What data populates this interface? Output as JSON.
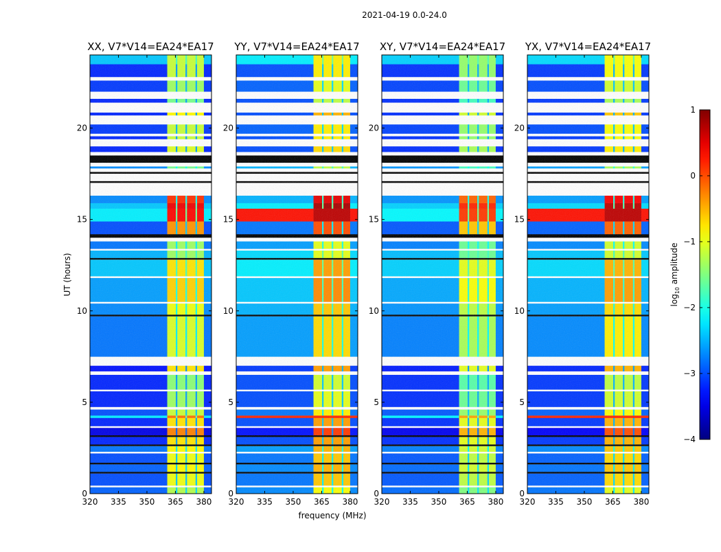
{
  "chart_data": {
    "type": "heatmap",
    "suptitle": "2021-04-19 0.0-24.0",
    "xlabel": "frequency (MHz)",
    "ylabel": "UT (hours)",
    "xlim": [
      320,
      384
    ],
    "ylim": [
      0,
      24
    ],
    "xticks": [
      "320",
      "335",
      "350",
      "365",
      "380"
    ],
    "xtick_values": [
      320,
      335,
      350,
      365,
      380
    ],
    "yticks": [
      "0",
      "5",
      "10",
      "15",
      "20"
    ],
    "ytick_values": [
      0,
      5,
      10,
      15,
      20
    ],
    "colorbar": {
      "label_main": "log",
      "label_sub": "10",
      "label_rest": " amplitude",
      "range": [
        -4,
        1
      ],
      "ticks": [
        "−4",
        "−3",
        "−2",
        "−1",
        "0",
        "1"
      ],
      "tick_values": [
        -4,
        -3,
        -2,
        -1,
        0,
        1
      ],
      "colormap": "jet"
    },
    "frequency_bands": [
      {
        "f0": 320,
        "f1": 360.7,
        "kind": "base"
      },
      {
        "f0": 360.7,
        "f1": 365.2,
        "kind": "band"
      },
      {
        "f0": 365.2,
        "f1": 366.0,
        "kind": "gap"
      },
      {
        "f0": 366.0,
        "f1": 370.3,
        "kind": "band"
      },
      {
        "f0": 370.3,
        "f1": 371.1,
        "kind": "gap"
      },
      {
        "f0": 371.1,
        "f1": 375.6,
        "kind": "band"
      },
      {
        "f0": 375.6,
        "f1": 376.4,
        "kind": "gap"
      },
      {
        "f0": 376.4,
        "f1": 380.0,
        "kind": "band"
      },
      {
        "f0": 380.0,
        "f1": 384,
        "kind": "base"
      }
    ],
    "time_segments": [
      [
        0,
        0.35,
        -2.7,
        -0.9
      ],
      [
        0.35,
        0.45,
        "flagged"
      ],
      [
        0.45,
        1.1,
        -2.8,
        -0.6
      ],
      [
        1.1,
        1.2,
        "blank"
      ],
      [
        1.2,
        1.6,
        -2.7,
        -0.5
      ],
      [
        1.6,
        1.7,
        "blank"
      ],
      [
        1.7,
        2.2,
        -2.8,
        -0.6
      ],
      [
        2.2,
        2.3,
        "flagged"
      ],
      [
        2.3,
        2.6,
        -2.6,
        -0.5
      ],
      [
        2.6,
        2.7,
        "blank"
      ],
      [
        2.7,
        3.1,
        -3.0,
        -0.4
      ],
      [
        3.1,
        3.2,
        "blank"
      ],
      [
        3.2,
        3.6,
        -3.3,
        0.1
      ],
      [
        3.6,
        3.7,
        "flagged"
      ],
      [
        3.7,
        4.15,
        -3.0,
        -0.4
      ],
      [
        4.15,
        4.28,
        "rfi",
        0.2,
        0.2
      ],
      [
        4.28,
        4.6,
        -2.8,
        -0.8
      ],
      [
        4.6,
        4.75,
        "flagged"
      ],
      [
        4.75,
        5.6,
        -3.0,
        -1.0
      ],
      [
        5.6,
        5.7,
        "flagged"
      ],
      [
        5.7,
        6.5,
        -3.0,
        -1.1
      ],
      [
        6.5,
        6.7,
        "flagged"
      ],
      [
        6.7,
        7.0,
        -3.1,
        -0.4
      ],
      [
        7.0,
        7.5,
        "flagged"
      ],
      [
        7.5,
        9.7,
        -2.6,
        -0.7
      ],
      [
        9.7,
        9.8,
        "blank"
      ],
      [
        9.8,
        10.4,
        -2.5,
        -0.6
      ],
      [
        10.4,
        10.5,
        "flagged"
      ],
      [
        10.5,
        11.8,
        -2.4,
        -0.3
      ],
      [
        11.8,
        11.9,
        "flagged"
      ],
      [
        11.9,
        12.8,
        -2.2,
        -0.4
      ],
      [
        12.8,
        12.9,
        "blank"
      ],
      [
        12.9,
        13.3,
        -2.3,
        -1.0
      ],
      [
        13.3,
        13.4,
        "flagged"
      ],
      [
        13.4,
        13.8,
        -2.6,
        -1.0
      ],
      [
        13.8,
        14.0,
        "flagged"
      ],
      [
        14.0,
        14.2,
        "blank"
      ],
      [
        14.2,
        14.9,
        -2.8,
        0.0
      ],
      [
        14.9,
        15.6,
        "rfi",
        0.3,
        0.7
      ],
      [
        15.6,
        15.9,
        -2.2,
        0.8
      ],
      [
        15.9,
        16.3,
        -2.5,
        0.5
      ],
      [
        16.3,
        17.0,
        "flagged"
      ],
      [
        17.0,
        17.1,
        "blank"
      ],
      [
        17.1,
        17.5,
        "flagged"
      ],
      [
        17.5,
        17.6,
        "blank"
      ],
      [
        17.6,
        17.8,
        "flagged"
      ],
      [
        17.8,
        17.9,
        -2.5,
        -1.2
      ],
      [
        17.9,
        18.1,
        "flagged"
      ],
      [
        18.1,
        18.5,
        "blank"
      ],
      [
        18.5,
        18.7,
        "flagged"
      ],
      [
        18.7,
        19.0,
        -3.0,
        -0.7
      ],
      [
        19.0,
        19.4,
        "flagged"
      ],
      [
        19.4,
        19.55,
        -3.0,
        -0.8
      ],
      [
        19.55,
        19.7,
        "flagged"
      ],
      [
        19.7,
        20.2,
        -2.9,
        -0.8
      ],
      [
        20.2,
        20.7,
        "flagged"
      ],
      [
        20.7,
        20.85,
        -3.0,
        -0.5
      ],
      [
        20.85,
        21.4,
        "flagged"
      ],
      [
        21.4,
        21.6,
        -3.0,
        -1.2
      ],
      [
        21.6,
        22.0,
        "flagged"
      ],
      [
        22.0,
        22.6,
        -2.9,
        -1.0
      ],
      [
        22.6,
        22.8,
        "flagged"
      ],
      [
        22.8,
        23.5,
        -3.0,
        -0.8
      ],
      [
        23.5,
        24.0,
        -2.2,
        -0.8
      ]
    ],
    "panels": [
      {
        "title": "XX, V7*V14=EA24*EA17",
        "base_offset": -0.2,
        "band_offset": -0.35,
        "rfi_lines": false
      },
      {
        "title": "YY, V7*V14=EA24*EA17",
        "base_offset": 0.0,
        "band_offset": 0.0,
        "rfi_lines": true
      },
      {
        "title": "XY, V7*V14=EA24*EA17",
        "base_offset": -0.15,
        "band_offset": -0.6,
        "rfi_lines": false
      },
      {
        "title": "YX, V7*V14=EA24*EA17",
        "base_offset": -0.1,
        "band_offset": -0.1,
        "rfi_lines": true
      }
    ]
  }
}
